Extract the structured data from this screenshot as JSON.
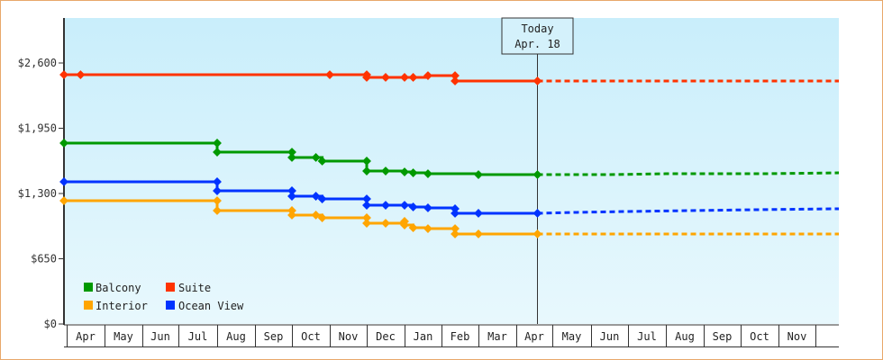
{
  "chart_data": {
    "type": "line",
    "title": "",
    "xlabel": "",
    "ylabel": "",
    "ylim": [
      0,
      2925
    ],
    "y_ticks": [
      {
        "label": "$0",
        "value": 0
      },
      {
        "label": "$650",
        "value": 650
      },
      {
        "label": "$1,300",
        "value": 1300
      },
      {
        "label": "$1,950",
        "value": 1950
      },
      {
        "label": "$2,600",
        "value": 2600
      }
    ],
    "x_categories": [
      "Apr",
      "May",
      "Jun",
      "Jul",
      "Aug",
      "Sep",
      "Oct",
      "Nov",
      "Dec",
      "Jan",
      "Feb",
      "Mar",
      "Apr",
      "May",
      "Jun",
      "Jul",
      "Aug",
      "Sep",
      "Oct",
      "Nov"
    ],
    "grid": false,
    "legend_position": "bottom-left inside",
    "today_marker": {
      "line1": "Today",
      "line2": "Apr. 18"
    },
    "series": [
      {
        "name": "Suite",
        "color": "#ff3300",
        "history": [
          [
            "Apr 1",
            2483
          ],
          [
            "Apr 12",
            2483
          ],
          [
            "Nov 1",
            2483
          ],
          [
            "Dec 1",
            2483
          ],
          [
            "Dec 1",
            2457
          ],
          [
            "Dec 16",
            2457
          ],
          [
            "Jan 1",
            2457
          ],
          [
            "Jan 8",
            2457
          ],
          [
            "Jan 20",
            2474
          ],
          [
            "Feb 12",
            2474
          ],
          [
            "Feb 12",
            2421
          ],
          [
            "Apr 18",
            2421
          ]
        ],
        "forecast": [
          [
            "Apr 18",
            2421
          ],
          [
            "Nov 30",
            2421
          ]
        ]
      },
      {
        "name": "Balcony",
        "color": "#009900",
        "history": [
          [
            "Apr 1",
            1802
          ],
          [
            "Aug 1",
            1802
          ],
          [
            "Aug 1",
            1712
          ],
          [
            "Oct 1",
            1712
          ],
          [
            "Oct 1",
            1659
          ],
          [
            "Oct 20",
            1659
          ],
          [
            "Oct 25",
            1623
          ],
          [
            "Dec 1",
            1623
          ],
          [
            "Dec 1",
            1524
          ],
          [
            "Dec 16",
            1524
          ],
          [
            "Jan 1",
            1515
          ],
          [
            "Jan 8",
            1506
          ],
          [
            "Jan 20",
            1497
          ],
          [
            "Mar 1",
            1488
          ],
          [
            "Apr 18",
            1488
          ]
        ],
        "forecast": [
          [
            "Apr 18",
            1488
          ],
          [
            "Jun 15",
            1488
          ],
          [
            "Aug 1",
            1497
          ],
          [
            "Oct 20",
            1497
          ],
          [
            "Nov 30",
            1506
          ]
        ]
      },
      {
        "name": "Ocean View",
        "color": "#0033ff",
        "history": [
          [
            "Apr 1",
            1417
          ],
          [
            "Aug 1",
            1417
          ],
          [
            "Aug 1",
            1327
          ],
          [
            "Oct 1",
            1327
          ],
          [
            "Oct 1",
            1273
          ],
          [
            "Oct 20",
            1273
          ],
          [
            "Oct 25",
            1246
          ],
          [
            "Dec 1",
            1246
          ],
          [
            "Dec 1",
            1183
          ],
          [
            "Dec 16",
            1183
          ],
          [
            "Jan 1",
            1183
          ],
          [
            "Jan 8",
            1166
          ],
          [
            "Jan 20",
            1157
          ],
          [
            "Feb 12",
            1148
          ],
          [
            "Feb 12",
            1103
          ],
          [
            "Mar 1",
            1103
          ],
          [
            "Apr 18",
            1103
          ]
        ],
        "forecast": [
          [
            "Apr 18",
            1103
          ],
          [
            "May 20",
            1112
          ],
          [
            "Jul 1",
            1121
          ],
          [
            "Oct 15",
            1139
          ],
          [
            "Nov 30",
            1148
          ]
        ]
      },
      {
        "name": "Interior",
        "color": "#ffa500",
        "history": [
          [
            "Apr 1",
            1228
          ],
          [
            "Aug 1",
            1228
          ],
          [
            "Aug 1",
            1130
          ],
          [
            "Oct 1",
            1130
          ],
          [
            "Oct 1",
            1085
          ],
          [
            "Oct 20",
            1085
          ],
          [
            "Oct 25",
            1058
          ],
          [
            "Dec 1",
            1058
          ],
          [
            "Dec 1",
            1004
          ],
          [
            "Dec 16",
            1004
          ],
          [
            "Jan 1",
            1022
          ],
          [
            "Jan 1",
            986
          ],
          [
            "Jan 8",
            959
          ],
          [
            "Jan 20",
            950
          ],
          [
            "Feb 12",
            950
          ],
          [
            "Feb 12",
            897
          ],
          [
            "Mar 1",
            897
          ],
          [
            "Apr 18",
            897
          ]
        ],
        "forecast": [
          [
            "Apr 18",
            897
          ],
          [
            "Nov 30",
            897
          ]
        ]
      }
    ]
  },
  "legend": [
    {
      "name": "Balcony",
      "color": "#009900"
    },
    {
      "name": "Suite",
      "color": "#ff3300"
    },
    {
      "name": "Interior",
      "color": "#ffa500"
    },
    {
      "name": "Ocean View",
      "color": "#0033ff"
    }
  ],
  "today": {
    "line1": "Today",
    "line2": "Apr. 18"
  }
}
